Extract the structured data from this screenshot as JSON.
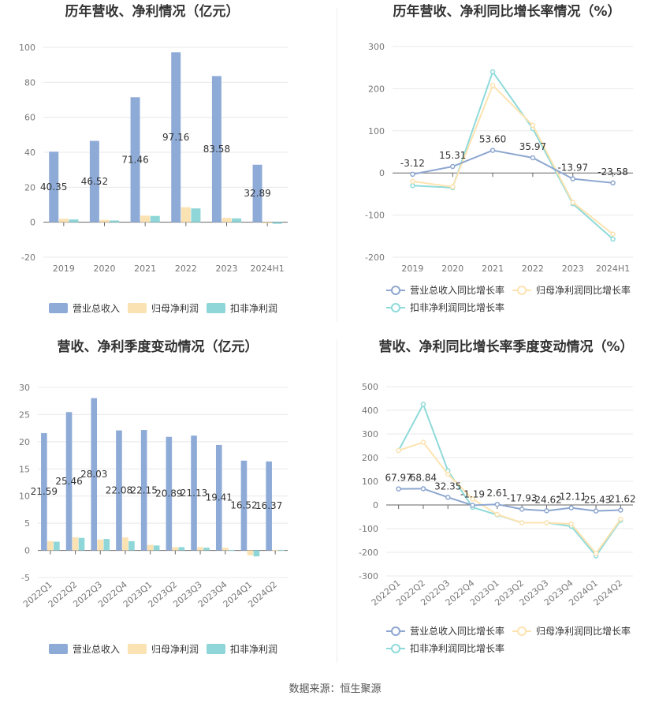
{
  "source": "数据来源：恒生聚源",
  "colors": {
    "revenue": "#8eabd8",
    "net_profit": "#fbe2b3",
    "deducted_profit": "#8ed6d8",
    "rev_growth": "#8ea7d0",
    "np_growth": "#fde3b0",
    "dp_growth": "#8fdada"
  },
  "chart_data": [
    {
      "type": "bar",
      "title": "历年营收、净利情况（亿元）",
      "categories": [
        "2019",
        "2020",
        "2021",
        "2022",
        "2023",
        "2024H1"
      ],
      "ylim": [
        -20,
        100
      ],
      "yticks": [
        -20,
        0,
        20,
        40,
        60,
        80,
        100
      ],
      "series": [
        {
          "name": "营业总收入",
          "values": [
            40.35,
            46.52,
            71.46,
            97.16,
            83.58,
            32.89
          ],
          "labels": [
            "40.35",
            "46.52",
            "71.46",
            "97.16",
            "83.58",
            "32.89"
          ]
        },
        {
          "name": "归母净利润",
          "values": [
            2.0,
            1.3,
            3.8,
            8.6,
            2.5,
            -0.6
          ]
        },
        {
          "name": "扣非净利润",
          "values": [
            1.6,
            1.0,
            3.6,
            7.9,
            2.2,
            -0.9
          ]
        }
      ],
      "legend": "bottom"
    },
    {
      "type": "line",
      "title": "历年营收、净利同比增长率情况（%）",
      "categories": [
        "2019",
        "2020",
        "2021",
        "2022",
        "2023",
        "2024H1"
      ],
      "ylim": [
        -200,
        300
      ],
      "yticks": [
        -200,
        -100,
        0,
        100,
        200,
        300
      ],
      "series": [
        {
          "name": "营业总收入同比增长率",
          "values": [
            -3.12,
            15.31,
            53.6,
            35.97,
            -13.97,
            -23.58
          ],
          "labels": [
            "-3.12",
            "15.31",
            "53.60",
            "35.97",
            "-13.97",
            "-23.58"
          ]
        },
        {
          "name": "归母净利润同比增长率",
          "values": [
            -20,
            -33,
            208,
            113,
            -70,
            -145
          ]
        },
        {
          "name": "扣非净利润同比增长率",
          "values": [
            -30,
            -35,
            240,
            105,
            -73,
            -157
          ]
        }
      ],
      "legend": "bottom"
    },
    {
      "type": "bar",
      "title": "营收、净利季度变动情况（亿元）",
      "categories": [
        "2022Q1",
        "2022Q2",
        "2022Q3",
        "2022Q4",
        "2023Q1",
        "2023Q2",
        "2023Q3",
        "2023Q4",
        "2024Q1",
        "2024Q2"
      ],
      "ylim": [
        -5,
        30
      ],
      "yticks": [
        -5,
        0,
        5,
        10,
        15,
        20,
        25,
        30
      ],
      "series": [
        {
          "name": "营业总收入",
          "values": [
            21.59,
            25.46,
            28.03,
            22.08,
            22.15,
            20.89,
            21.13,
            19.41,
            16.52,
            16.37
          ],
          "labels": [
            "21.59",
            "25.46",
            "28.03",
            "22.08",
            "22.15",
            "20.89",
            "21.13",
            "19.41",
            "16.52",
            "16.37"
          ]
        },
        {
          "name": "归母净利润",
          "values": [
            1.7,
            2.4,
            2.0,
            2.4,
            1.0,
            0.6,
            0.6,
            0.5,
            -0.9,
            0.1
          ]
        },
        {
          "name": "扣非净利润",
          "values": [
            1.6,
            2.3,
            2.1,
            1.7,
            0.9,
            0.6,
            0.5,
            0.1,
            -1.1,
            0.1
          ]
        }
      ],
      "legend": "bottom"
    },
    {
      "type": "line",
      "title": "营收、净利同比增长率季度变动情况（%）",
      "categories": [
        "2022Q1",
        "2022Q2",
        "2022Q3",
        "2022Q4",
        "2023Q1",
        "2023Q2",
        "2023Q3",
        "2023Q4",
        "2024Q1",
        "2024Q2"
      ],
      "ylim": [
        -300,
        500
      ],
      "yticks": [
        -300,
        -200,
        -100,
        0,
        100,
        200,
        300,
        400,
        500
      ],
      "series": [
        {
          "name": "营业总收入同比增长率",
          "values": [
            67.97,
            68.84,
            32.35,
            -1.19,
            2.61,
            -17.93,
            -24.62,
            -12.11,
            -25.43,
            -21.62
          ],
          "labels": [
            "67.97",
            "68.84",
            "32.35",
            "-1.19",
            "2.61",
            "-17.93",
            "-24.62",
            "-12.11",
            "-25.43",
            "-21.62"
          ]
        },
        {
          "name": "归母净利润同比增长率",
          "values": [
            230,
            265,
            130,
            25,
            -40,
            -75,
            -75,
            -80,
            -205,
            -60
          ]
        },
        {
          "name": "扣非净利润同比增长率",
          "values": [
            230,
            425,
            145,
            -10,
            -42,
            -75,
            -75,
            -90,
            -215,
            -65
          ]
        }
      ],
      "legend": "bottom"
    }
  ]
}
